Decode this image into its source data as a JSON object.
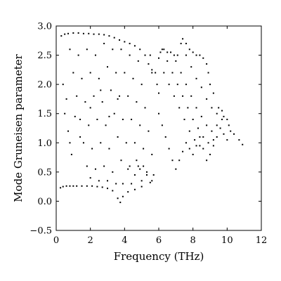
{
  "chart_data": {
    "type": "scatter",
    "title": "",
    "xlabel": "Frequency (THz)",
    "ylabel": "Mode Gruneisen parameter",
    "xlim": [
      0,
      12
    ],
    "ylim": [
      -0.5,
      3.0
    ],
    "xticks": [
      0,
      2,
      4,
      6,
      8,
      10,
      12
    ],
    "yticks": [
      -0.5,
      0.0,
      0.5,
      1.0,
      1.5,
      2.0,
      2.5,
      3.0
    ],
    "xtick_labels": [
      "0",
      "2",
      "4",
      "6",
      "8",
      "10",
      "12"
    ],
    "ytick_labels": [
      "−0.5",
      "0.0",
      "0.5",
      "1.0",
      "1.5",
      "2.0",
      "2.5",
      "3.0"
    ],
    "grid": false,
    "marker_color": "#000000",
    "series": [
      {
        "name": "",
        "points": [
          [
            0.25,
            0.23
          ],
          [
            0.4,
            0.25
          ],
          [
            0.6,
            0.26
          ],
          [
            0.8,
            0.26
          ],
          [
            1.0,
            0.26
          ],
          [
            1.2,
            0.26
          ],
          [
            1.5,
            0.26
          ],
          [
            1.8,
            0.26
          ],
          [
            2.1,
            0.26
          ],
          [
            2.4,
            0.25
          ],
          [
            2.7,
            0.24
          ],
          [
            3.0,
            0.22
          ],
          [
            3.3,
            0.18
          ],
          [
            3.6,
            0.05
          ],
          [
            3.75,
            -0.02
          ],
          [
            3.9,
            0.08
          ],
          [
            4.2,
            0.16
          ],
          [
            4.6,
            0.2
          ],
          [
            5.0,
            0.25
          ],
          [
            5.5,
            0.32
          ],
          [
            0.3,
            2.83
          ],
          [
            0.5,
            2.86
          ],
          [
            0.7,
            2.87
          ],
          [
            1.0,
            2.88
          ],
          [
            1.3,
            2.88
          ],
          [
            1.6,
            2.87
          ],
          [
            1.9,
            2.87
          ],
          [
            2.2,
            2.86
          ],
          [
            2.5,
            2.86
          ],
          [
            2.8,
            2.85
          ],
          [
            3.1,
            2.83
          ],
          [
            3.4,
            2.8
          ],
          [
            3.7,
            2.76
          ],
          [
            4.0,
            2.73
          ],
          [
            4.3,
            2.7
          ],
          [
            4.6,
            2.66
          ],
          [
            4.9,
            2.6
          ],
          [
            5.2,
            2.5
          ],
          [
            5.4,
            2.35
          ],
          [
            5.6,
            2.2
          ],
          [
            0.8,
            2.6
          ],
          [
            1.0,
            2.2
          ],
          [
            1.2,
            1.8
          ],
          [
            1.4,
            1.4
          ],
          [
            1.6,
            1.0
          ],
          [
            1.8,
            0.6
          ],
          [
            2.0,
            0.4
          ],
          [
            1.3,
            2.5
          ],
          [
            1.5,
            2.1
          ],
          [
            1.7,
            1.7
          ],
          [
            1.9,
            1.3
          ],
          [
            2.1,
            0.9
          ],
          [
            2.3,
            0.55
          ],
          [
            2.5,
            0.35
          ],
          [
            1.8,
            2.6
          ],
          [
            2.0,
            2.2
          ],
          [
            2.2,
            1.8
          ],
          [
            2.4,
            1.4
          ],
          [
            2.6,
            1.0
          ],
          [
            2.8,
            0.6
          ],
          [
            3.0,
            0.35
          ],
          [
            2.3,
            2.5
          ],
          [
            2.5,
            2.1
          ],
          [
            2.7,
            1.7
          ],
          [
            2.9,
            1.3
          ],
          [
            3.1,
            0.9
          ],
          [
            3.3,
            0.5
          ],
          [
            3.5,
            0.3
          ],
          [
            2.8,
            2.7
          ],
          [
            3.0,
            2.3
          ],
          [
            3.2,
            1.9
          ],
          [
            3.4,
            1.5
          ],
          [
            3.6,
            1.1
          ],
          [
            3.8,
            0.7
          ],
          [
            3.9,
            0.3
          ],
          [
            3.3,
            2.6
          ],
          [
            3.5,
            2.2
          ],
          [
            3.7,
            1.8
          ],
          [
            3.9,
            1.4
          ],
          [
            4.1,
            1.0
          ],
          [
            4.3,
            0.6
          ],
          [
            4.4,
            0.3
          ],
          [
            3.8,
            2.6
          ],
          [
            4.0,
            2.2
          ],
          [
            4.2,
            1.8
          ],
          [
            4.4,
            1.4
          ],
          [
            4.6,
            1.0
          ],
          [
            4.8,
            0.6
          ],
          [
            5.0,
            0.35
          ],
          [
            4.3,
            2.5
          ],
          [
            4.5,
            2.1
          ],
          [
            4.7,
            1.7
          ],
          [
            4.9,
            1.3
          ],
          [
            5.1,
            0.9
          ],
          [
            5.3,
            0.5
          ],
          [
            4.8,
            2.4
          ],
          [
            5.0,
            2.0
          ],
          [
            5.2,
            1.6
          ],
          [
            5.4,
            1.2
          ],
          [
            5.6,
            0.8
          ],
          [
            5.7,
            0.45
          ],
          [
            0.4,
            2.0
          ],
          [
            0.6,
            1.75
          ],
          [
            0.5,
            1.5
          ],
          [
            0.7,
            1.2
          ],
          [
            0.9,
            0.8
          ],
          [
            0.8,
            1.0
          ],
          [
            1.1,
            1.45
          ],
          [
            1.4,
            1.1
          ],
          [
            2.0,
            1.6
          ],
          [
            2.6,
            1.9
          ],
          [
            3.1,
            1.45
          ],
          [
            3.6,
            1.75
          ],
          [
            4.2,
            0.55
          ],
          [
            4.6,
            0.45
          ],
          [
            5.5,
            2.5
          ],
          [
            5.6,
            2.25
          ],
          [
            5.8,
            2.2
          ],
          [
            5.9,
            2.0
          ],
          [
            6.0,
            1.85
          ],
          [
            6.0,
            2.45
          ],
          [
            6.1,
            2.55
          ],
          [
            6.2,
            2.6
          ],
          [
            6.3,
            2.6
          ],
          [
            6.5,
            2.55
          ],
          [
            6.7,
            2.55
          ],
          [
            6.9,
            2.5
          ],
          [
            7.1,
            2.5
          ],
          [
            7.3,
            2.7
          ],
          [
            7.4,
            2.78
          ],
          [
            7.6,
            2.7
          ],
          [
            7.8,
            2.6
          ],
          [
            8.0,
            2.55
          ],
          [
            8.2,
            2.5
          ],
          [
            8.4,
            2.5
          ],
          [
            8.6,
            2.45
          ],
          [
            8.8,
            2.35
          ],
          [
            8.9,
            2.2
          ],
          [
            9.0,
            2.0
          ],
          [
            9.2,
            1.85
          ],
          [
            9.5,
            1.6
          ],
          [
            9.8,
            1.45
          ],
          [
            10.1,
            1.3
          ],
          [
            10.4,
            1.15
          ],
          [
            10.7,
            1.05
          ],
          [
            10.9,
            0.97
          ],
          [
            6.0,
            1.5
          ],
          [
            6.2,
            1.3
          ],
          [
            6.4,
            1.1
          ],
          [
            6.6,
            0.9
          ],
          [
            6.8,
            0.7
          ],
          [
            7.0,
            0.55
          ],
          [
            7.2,
            0.7
          ],
          [
            7.4,
            0.85
          ],
          [
            7.6,
            1.0
          ],
          [
            7.8,
            0.9
          ],
          [
            8.0,
            0.8
          ],
          [
            8.2,
            0.95
          ],
          [
            8.4,
            1.1
          ],
          [
            8.6,
            0.9
          ],
          [
            8.8,
            0.7
          ],
          [
            9.0,
            0.8
          ],
          [
            9.2,
            0.95
          ],
          [
            9.4,
            1.1
          ],
          [
            9.6,
            1.25
          ],
          [
            9.8,
            1.15
          ],
          [
            10.0,
            1.05
          ],
          [
            10.2,
            1.2
          ],
          [
            6.3,
            2.2
          ],
          [
            6.6,
            2.0
          ],
          [
            6.9,
            1.8
          ],
          [
            7.2,
            1.6
          ],
          [
            7.5,
            1.4
          ],
          [
            7.8,
            1.2
          ],
          [
            8.1,
            1.05
          ],
          [
            8.4,
            0.95
          ],
          [
            6.5,
            2.4
          ],
          [
            6.8,
            2.2
          ],
          [
            7.1,
            2.0
          ],
          [
            7.4,
            1.8
          ],
          [
            7.7,
            1.6
          ],
          [
            8.0,
            1.4
          ],
          [
            8.3,
            1.25
          ],
          [
            8.6,
            1.1
          ],
          [
            8.9,
            1.0
          ],
          [
            9.2,
            1.05
          ],
          [
            7.0,
            2.4
          ],
          [
            7.3,
            2.2
          ],
          [
            7.6,
            2.0
          ],
          [
            7.9,
            1.8
          ],
          [
            8.2,
            1.6
          ],
          [
            8.5,
            1.45
          ],
          [
            8.8,
            1.3
          ],
          [
            9.1,
            1.2
          ],
          [
            9.4,
            1.3
          ],
          [
            9.7,
            1.4
          ],
          [
            7.6,
            2.5
          ],
          [
            7.9,
            2.3
          ],
          [
            8.2,
            2.1
          ],
          [
            8.5,
            1.95
          ],
          [
            8.8,
            1.75
          ],
          [
            9.1,
            1.6
          ],
          [
            9.4,
            1.5
          ],
          [
            9.7,
            1.55
          ],
          [
            10.0,
            1.4
          ],
          [
            5.6,
            0.35
          ],
          [
            5.3,
            0.45
          ],
          [
            5.1,
            0.6
          ],
          [
            4.9,
            0.55
          ],
          [
            4.7,
            0.7
          ]
        ]
      }
    ]
  }
}
